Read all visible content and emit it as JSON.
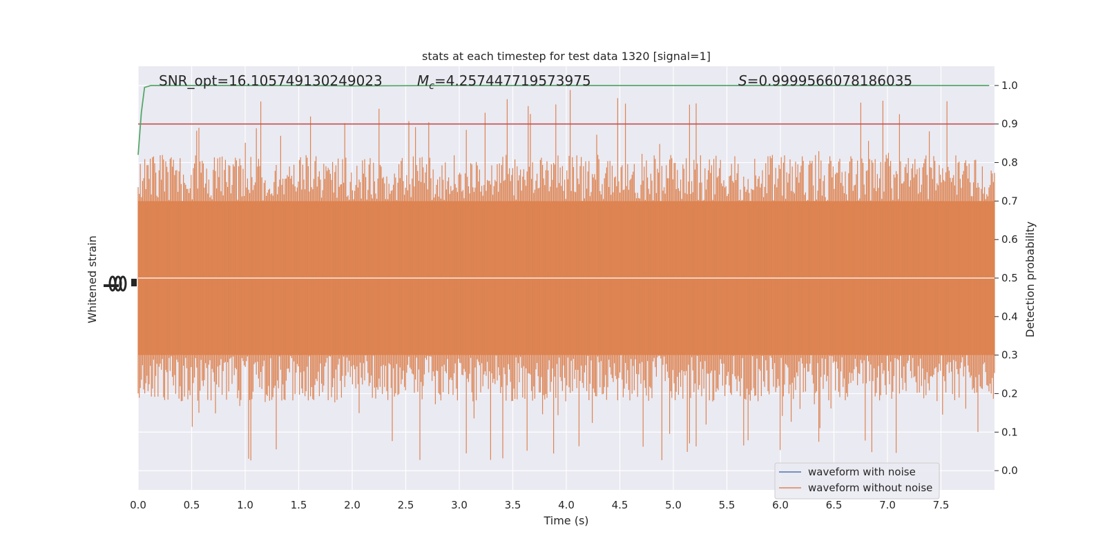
{
  "chart_data": {
    "type": "line",
    "title": "stats at each timestep for test data 1320 [signal=1]",
    "xlabel": "Time (s)",
    "ylabel_left": "Whitened strain",
    "ylabel_right": "Detection probability",
    "xlim": [
      0.0,
      8.0
    ],
    "ylim_right": [
      -0.05,
      1.05
    ],
    "x_ticks": [
      "0.0",
      "0.5",
      "1.0",
      "1.5",
      "2.0",
      "2.5",
      "3.0",
      "3.5",
      "4.0",
      "4.5",
      "5.0",
      "5.5",
      "6.0",
      "6.5",
      "7.0",
      "7.5"
    ],
    "y_ticks_right": [
      "0.0",
      "0.1",
      "0.2",
      "0.3",
      "0.4",
      "0.5",
      "0.6",
      "0.7",
      "0.8",
      "0.9",
      "1.0"
    ],
    "grid": true,
    "legend_position": "lower-right",
    "annotations": {
      "snr": "SNR_opt=16.105749130249023",
      "mc": "=4.257447719573975",
      "s": "=0.9999566078186035"
    },
    "threshold": {
      "y": 0.9,
      "color": "#c44e52"
    },
    "series": [
      {
        "name": "waveform with noise",
        "color": "#4c72b0",
        "axis": "left"
      },
      {
        "name": "waveform without noise",
        "color": "#dd8452",
        "axis": "left",
        "band": [
          0.3,
          0.7
        ],
        "spike_range": [
          0.0,
          1.0
        ]
      },
      {
        "name": "detection probability",
        "color": "#55a868",
        "axis": "right",
        "x": [
          0.0,
          0.03,
          0.06,
          0.12,
          0.3,
          1.0,
          1.5,
          2.0,
          3.0,
          4.0,
          5.0,
          6.0,
          7.0,
          7.95
        ],
        "values": [
          0.82,
          0.93,
          0.995,
          1.0,
          1.0,
          1.0,
          1.0,
          0.999,
          1.0,
          1.0,
          1.0,
          1.0,
          1.0,
          1.0
        ]
      }
    ]
  }
}
